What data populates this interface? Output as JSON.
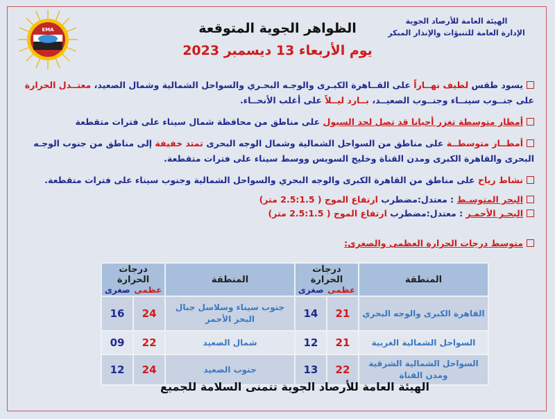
{
  "header": {
    "org_line1": "الهيئة العامة للأرصاد الجوية",
    "org_line2": "الإدارة العامة للتنبؤات والإنذار المبكر",
    "title": "الظواهر الجوية المتوقعة",
    "date": "يوم الأربعاء 13 ديسمبر 2023",
    "logo_text": "EMA"
  },
  "bullets": [
    [
      {
        "text": "يسود طقس ",
        "style": "blue"
      },
      {
        "text": "لطيف نهــاراً",
        "style": "red"
      },
      {
        "text": " على القــاهرة الكبـرى والوجـه البحـري والسواحل الشمالية وشمال الصعيد، ",
        "style": "blue"
      },
      {
        "text": "معتــدل الحرارة",
        "style": "red"
      },
      {
        "text": " على جنــوب سينــاء وجنــوب الصعيــد، ",
        "style": "blue"
      },
      {
        "text": "بــارد ليــلاً",
        "style": "red"
      },
      {
        "text": " على أغلب الأنحــاء.",
        "style": "blue"
      }
    ],
    [
      {
        "text": "أمطار متوسطة تغزر أحيانا قد تصل لحد السيول",
        "style": "red ul"
      },
      {
        "text": " على مناطق من محافظة شمال سيناء على فترات متقطعة",
        "style": "blue"
      }
    ],
    [
      {
        "text": "أمطــار متوسطــة",
        "style": "red"
      },
      {
        "text": " على مناطق من السواحل الشمالية وشمال الوجه البحرى ",
        "style": "blue"
      },
      {
        "text": "تمتد خفيفة",
        "style": "red"
      },
      {
        "text": " إلى مناطق من جنوب الوجـه البحرى والقاهرة الكبرى ومدن القناة وخليج السويس ووسط سيناء على فترات متقطعة.",
        "style": "blue"
      }
    ],
    [
      {
        "text": "نشاط رياح",
        "style": "red"
      },
      {
        "text": " على مناطق من القاهرة الكبرى والوجه البحري والسواحل الشمالية وجنوب سيناء على فترات متقطعة.",
        "style": "blue"
      }
    ]
  ],
  "seas": [
    [
      {
        "text": "البحر المتوسـط",
        "style": "red ul"
      },
      {
        "text": " : معتدل:مضطرب ",
        "style": "blue"
      },
      {
        "text": "ارتفاع الموج ( 2.5:1.5 متر)",
        "style": "red"
      }
    ],
    [
      {
        "text": "البحـر الأحمـر",
        "style": "red ul"
      },
      {
        "text": " : معتدل:مضطرب ",
        "style": "blue"
      },
      {
        "text": "ارتفاع الموج ( 2.5:1.5 متر)",
        "style": "red"
      }
    ]
  ],
  "temps_heading": "متوسط درجات الحرارة العظمى والصغرى:",
  "table": {
    "region_header": "المنطقة",
    "temp_header": "درجات الحرارة",
    "max_label": "عظمى",
    "min_label": "صغرى",
    "rows": [
      {
        "r1": "القاهرة الكبرى والوجه البحري",
        "max1": "21",
        "min1": "14",
        "r2": "جنوب سيناء وسلاسل جبال البحر الأحمر",
        "max2": "24",
        "min2": "16"
      },
      {
        "r1": "السواحل الشمالية الغربية",
        "max1": "21",
        "min1": "12",
        "r2": "شمال الصعيد",
        "max2": "22",
        "min2": "09"
      },
      {
        "r1": "السواحل الشمالية الشرقية ومدن القناة",
        "max1": "22",
        "min1": "13",
        "r2": "جنوب الصعيد",
        "max2": "24",
        "min2": "12"
      }
    ]
  },
  "footer": "الهيئة العامة للأرصاد الجوية تتمنى السلامة للجميع",
  "colors": {
    "accent_red": "#d01a1a",
    "text_blue": "#1f2b8f",
    "region_blue": "#3a78c2",
    "header_bg": "#a7bfdc"
  }
}
